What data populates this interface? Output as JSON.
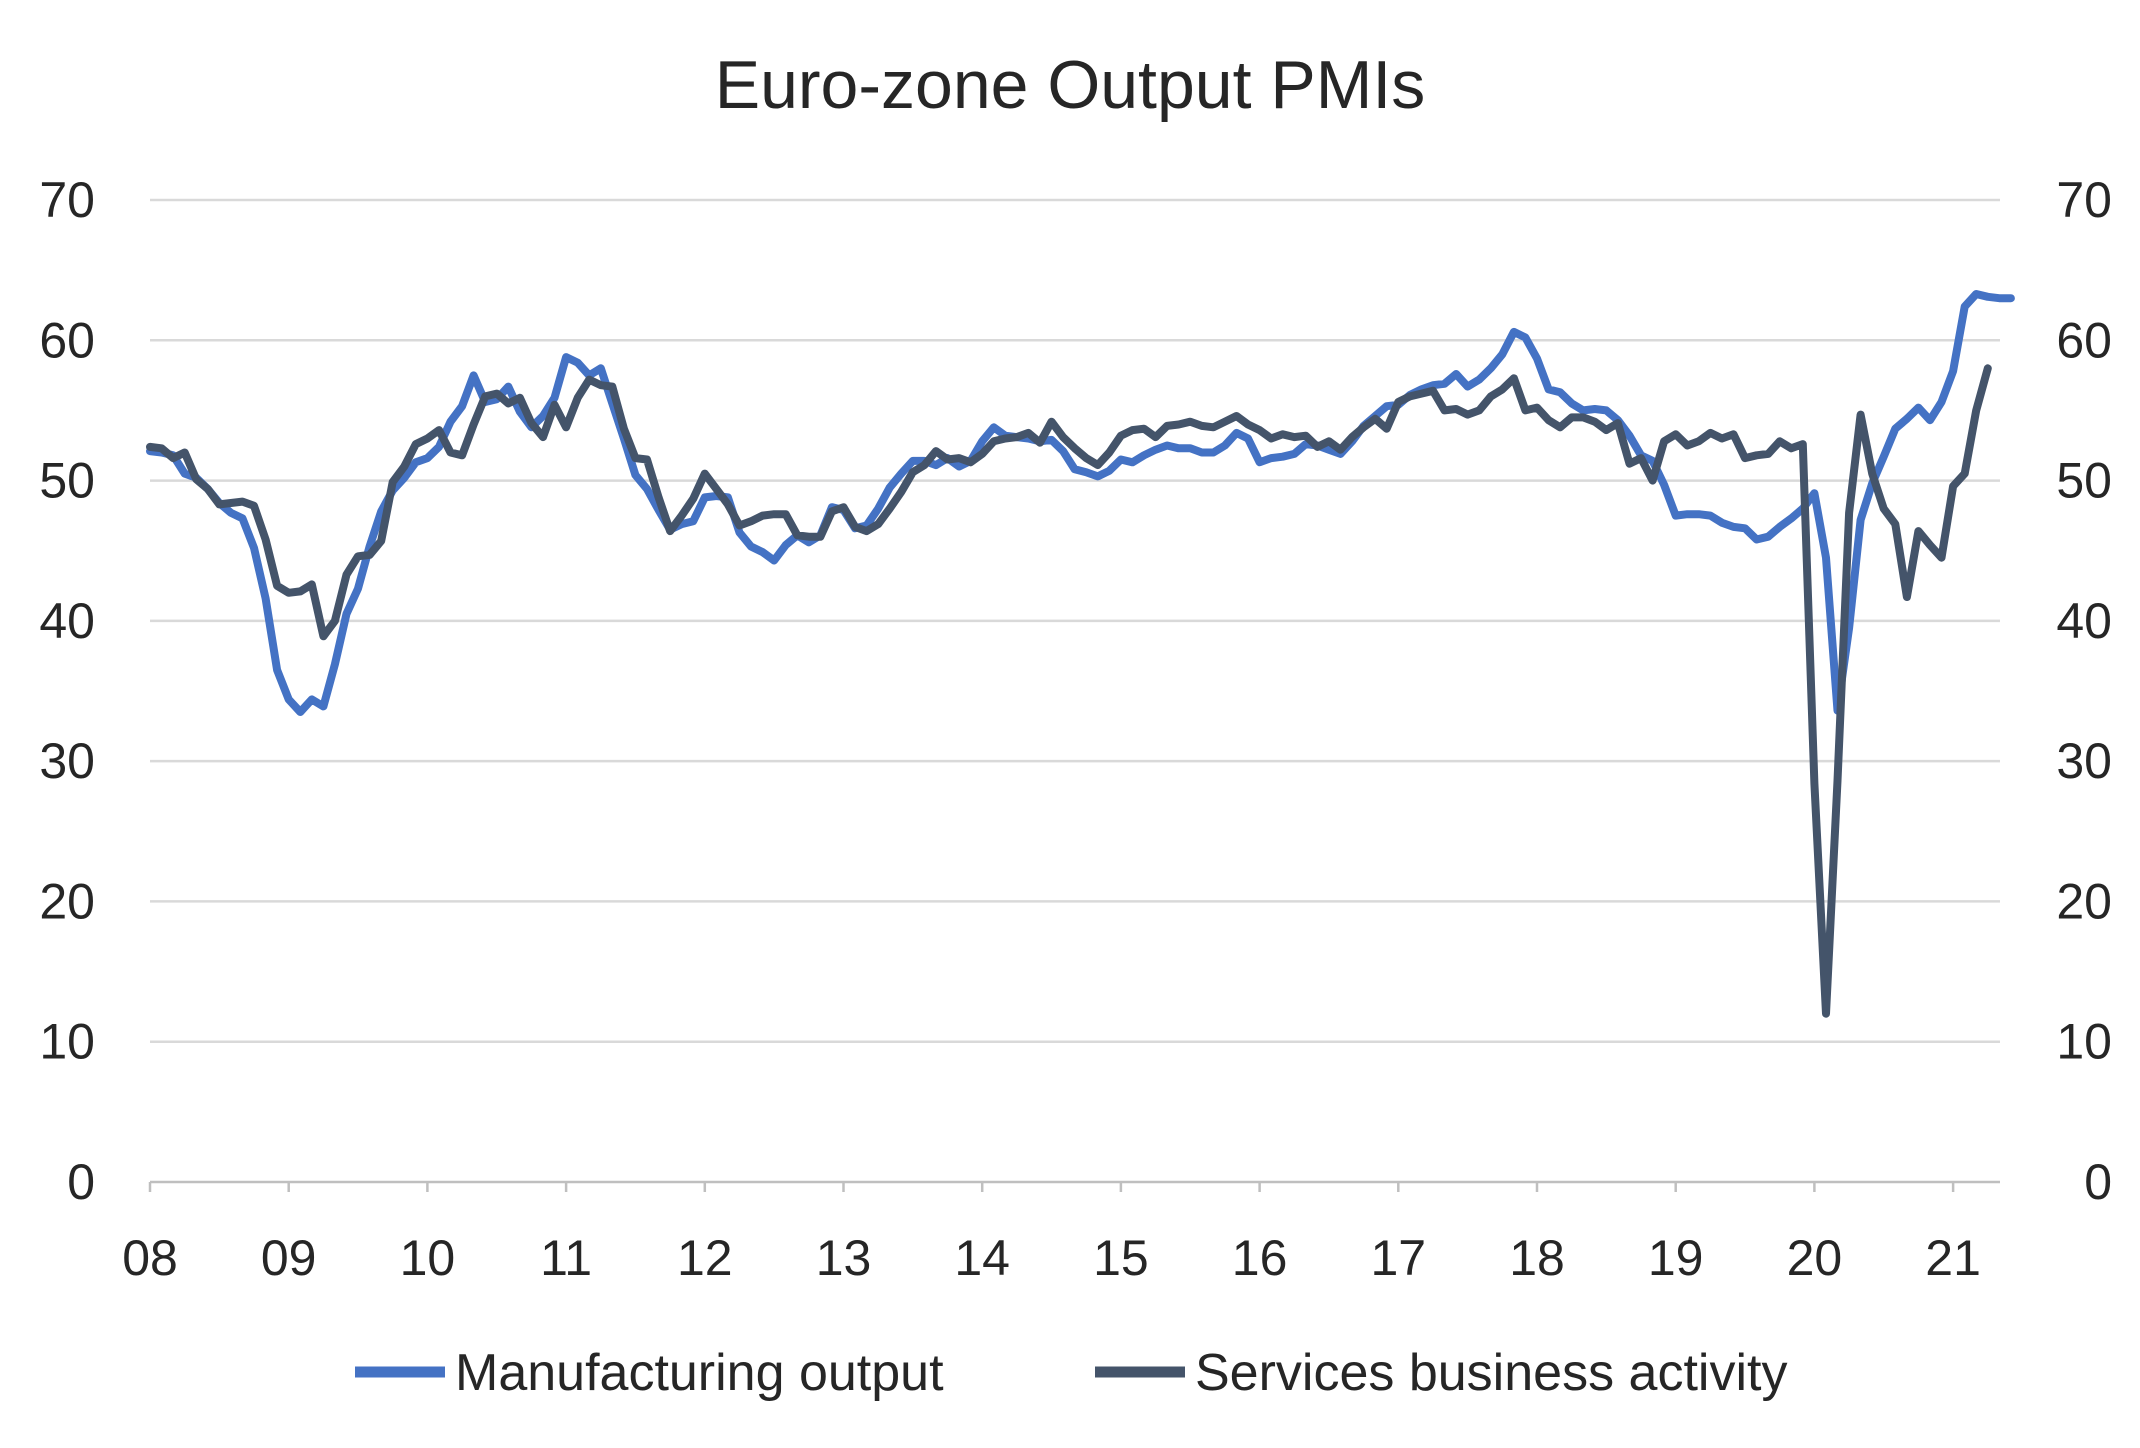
{
  "chart_data": {
    "type": "line",
    "title": "Euro-zone Output PMIs",
    "xlabel": "",
    "ylabel": "",
    "ylim": [
      0,
      70
    ],
    "y2lim": [
      0,
      70
    ],
    "y_ticks": [
      "0",
      "10",
      "20",
      "30",
      "40",
      "50",
      "60",
      "70"
    ],
    "x_tick_labels": [
      "08",
      "09",
      "10",
      "11",
      "12",
      "13",
      "14",
      "15",
      "16",
      "17",
      "18",
      "19",
      "20",
      "21"
    ],
    "x_start_year": 2008,
    "grid": "horizontal",
    "legend_position": "bottom",
    "series": [
      {
        "name": "Manufacturing output",
        "color": "#4472c4",
        "values": [
          52.1,
          52.0,
          51.8,
          50.5,
          50.2,
          49.4,
          48.4,
          47.7,
          47.3,
          45.2,
          41.6,
          36.5,
          34.4,
          33.5,
          34.4,
          33.9,
          36.9,
          40.5,
          42.3,
          45.3,
          47.8,
          49.3,
          50.2,
          51.3,
          51.6,
          52.4,
          54.2,
          55.3,
          57.5,
          55.6,
          55.8,
          56.7,
          54.9,
          53.8,
          54.6,
          55.9,
          58.8,
          58.4,
          57.5,
          58.0,
          55.5,
          53.0,
          50.4,
          49.4,
          47.9,
          46.5,
          46.9,
          47.1,
          48.8,
          48.9,
          48.8,
          46.3,
          45.3,
          44.9,
          44.3,
          45.4,
          46.1,
          45.6,
          46.1,
          48.1,
          47.9,
          46.6,
          46.8,
          48.0,
          49.5,
          50.5,
          51.4,
          51.4,
          51.1,
          51.6,
          51.0,
          51.4,
          52.8,
          53.8,
          53.2,
          53.1,
          53.0,
          52.8,
          52.9,
          52.1,
          50.8,
          50.6,
          50.3,
          50.7,
          51.5,
          51.3,
          51.8,
          52.2,
          52.5,
          52.3,
          52.3,
          52.0,
          52.0,
          52.5,
          53.4,
          53.0,
          51.3,
          51.6,
          51.7,
          51.9,
          52.6,
          52.5,
          52.2,
          51.9,
          52.8,
          53.9,
          54.6,
          55.3,
          55.4,
          56.1,
          56.5,
          56.8,
          56.9,
          57.6,
          56.7,
          57.2,
          58.0,
          59.0,
          60.6,
          60.2,
          58.7,
          56.5,
          56.3,
          55.5,
          55.0,
          55.1,
          55.0,
          54.3,
          53.2,
          51.8,
          51.4,
          49.7,
          47.5,
          47.6,
          47.6,
          47.5,
          47.0,
          46.7,
          46.6,
          45.8,
          46.0,
          46.7,
          47.3,
          48.0,
          49.1,
          44.5,
          33.6,
          39.5,
          47.2,
          49.8,
          51.7,
          53.7,
          54.4,
          55.2,
          54.3,
          55.6,
          57.8,
          62.4,
          63.3,
          63.1,
          63.0,
          63.0
        ]
      },
      {
        "name": "Services business activity",
        "color": "#44546a",
        "values": [
          52.4,
          52.3,
          51.6,
          52.0,
          50.1,
          49.4,
          48.3,
          48.4,
          48.5,
          48.2,
          45.8,
          42.5,
          42.0,
          42.1,
          42.6,
          38.9,
          40.0,
          43.3,
          44.6,
          44.7,
          45.7,
          49.9,
          51.0,
          52.6,
          53.0,
          53.6,
          52.0,
          51.8,
          54.0,
          56.0,
          56.2,
          55.5,
          55.9,
          54.1,
          53.1,
          55.4,
          53.8,
          55.9,
          57.2,
          56.8,
          56.7,
          53.7,
          51.6,
          51.5,
          48.8,
          46.4,
          47.5,
          48.7,
          50.5,
          49.4,
          48.3,
          46.8,
          47.1,
          47.5,
          47.6,
          47.6,
          46.1,
          46.0,
          46.0,
          47.8,
          48.1,
          46.7,
          46.4,
          46.9,
          48.0,
          49.2,
          50.6,
          51.1,
          52.1,
          51.5,
          51.6,
          51.3,
          51.9,
          52.8,
          53.0,
          53.1,
          53.4,
          52.7,
          54.2,
          53.1,
          52.3,
          51.6,
          51.1,
          52.0,
          53.2,
          53.6,
          53.7,
          53.1,
          53.9,
          54.0,
          54.2,
          53.9,
          53.8,
          54.2,
          54.6,
          54.0,
          53.6,
          53.0,
          53.3,
          53.1,
          53.2,
          52.4,
          52.8,
          52.2,
          53.1,
          53.8,
          54.4,
          53.7,
          55.6,
          56.0,
          56.2,
          56.4,
          55.0,
          55.1,
          54.7,
          55.0,
          56.0,
          56.5,
          57.3,
          55.0,
          55.2,
          54.3,
          53.8,
          54.5,
          54.5,
          54.2,
          53.6,
          54.1,
          51.2,
          51.6,
          50.0,
          52.8,
          53.3,
          52.5,
          52.8,
          53.4,
          53.0,
          53.3,
          51.6,
          51.8,
          51.9,
          52.8,
          52.3,
          52.6,
          28.4,
          12.0,
          28.6,
          47.7,
          54.7,
          50.5,
          48.0,
          46.9,
          41.7,
          46.4,
          45.4,
          44.5,
          49.6,
          50.5,
          55.0,
          58.0
        ]
      }
    ]
  }
}
